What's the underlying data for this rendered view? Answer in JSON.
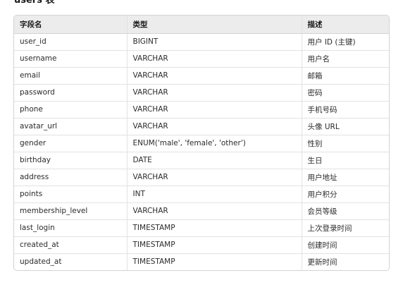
{
  "heading": "users 表",
  "table": {
    "columns": [
      "字段名",
      "类型",
      "描述"
    ],
    "rows": [
      [
        "user_id",
        "BIGINT",
        "用户 ID (主键)"
      ],
      [
        "username",
        "VARCHAR",
        "用户名"
      ],
      [
        "email",
        "VARCHAR",
        "邮箱"
      ],
      [
        "password",
        "VARCHAR",
        "密码"
      ],
      [
        "phone",
        "VARCHAR",
        "手机号码"
      ],
      [
        "avatar_url",
        "VARCHAR",
        "头像 URL"
      ],
      [
        "gender",
        "ENUM('male', 'female', 'other')",
        "性别"
      ],
      [
        "birthday",
        "DATE",
        "生日"
      ],
      [
        "address",
        "VARCHAR",
        "用户地址"
      ],
      [
        "points",
        "INT",
        "用户积分"
      ],
      [
        "membership_level",
        "VARCHAR",
        "会员等级"
      ],
      [
        "last_login",
        "TIMESTAMP",
        "上次登录时间"
      ],
      [
        "created_at",
        "TIMESTAMP",
        "创建时间"
      ],
      [
        "updated_at",
        "TIMESTAMP",
        "更新时间"
      ]
    ]
  }
}
